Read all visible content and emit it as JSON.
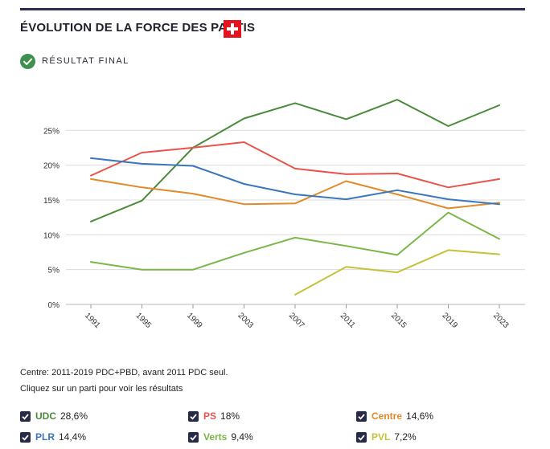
{
  "header": {
    "title": "ÉVOLUTION DE LA FORCE DES PARTIS",
    "flag_icon": "swiss-flag-icon",
    "status": "RÉSULTAT FINAL",
    "status_icon": "check-circle-icon"
  },
  "note": "Centre: 2011-2019 PDC+PBD, avant 2011 PDC seul.",
  "hint": "Cliquez sur un parti pour voir les résultats",
  "legend": [
    {
      "name": "UDC",
      "value": "28,6%",
      "color": "#4a8a3a"
    },
    {
      "name": "PS",
      "value": "18%",
      "color": "#e8544c"
    },
    {
      "name": "Centre",
      "value": "14,6%",
      "color": "#e08a2c"
    },
    {
      "name": "PLR",
      "value": "14,4%",
      "color": "#3a76bb"
    },
    {
      "name": "Verts",
      "value": "9,4%",
      "color": "#7ab648"
    },
    {
      "name": "PVL",
      "value": "7,2%",
      "color": "#c4c23a"
    }
  ],
  "chart_data": {
    "type": "line",
    "title": "ÉVOLUTION DE LA FORCE DES PARTIS",
    "xlabel": "",
    "ylabel": "",
    "ylim": [
      0,
      30
    ],
    "yticks": [
      "0%",
      "5%",
      "10%",
      "15%",
      "20%",
      "25%"
    ],
    "yticks_values": [
      0,
      5,
      10,
      15,
      20,
      25
    ],
    "categories": [
      "1991",
      "1995",
      "1999",
      "2003",
      "2007",
      "2011",
      "2015",
      "2019",
      "2023"
    ],
    "grid": true,
    "series": [
      {
        "name": "UDC",
        "color": "#4a8a3a",
        "values": [
          11.9,
          14.9,
          22.5,
          26.7,
          28.9,
          26.6,
          29.4,
          25.6,
          28.6
        ]
      },
      {
        "name": "PS",
        "color": "#e8544c",
        "values": [
          18.5,
          21.8,
          22.5,
          23.3,
          19.5,
          18.7,
          18.8,
          16.8,
          18.0
        ]
      },
      {
        "name": "Centre",
        "color": "#e08a2c",
        "values": [
          18.0,
          16.8,
          15.9,
          14.4,
          14.5,
          17.7,
          15.8,
          13.8,
          14.6
        ]
      },
      {
        "name": "PLR",
        "color": "#3a76bb",
        "values": [
          21.0,
          20.2,
          19.9,
          17.3,
          15.8,
          15.1,
          16.4,
          15.1,
          14.4
        ]
      },
      {
        "name": "Verts",
        "color": "#7ab648",
        "values": [
          6.1,
          5.0,
          5.0,
          7.4,
          9.6,
          8.4,
          7.1,
          13.2,
          9.4
        ]
      },
      {
        "name": "PVL",
        "color": "#c4c23a",
        "values": [
          null,
          null,
          null,
          null,
          1.4,
          5.4,
          4.6,
          7.8,
          7.2
        ]
      }
    ]
  }
}
